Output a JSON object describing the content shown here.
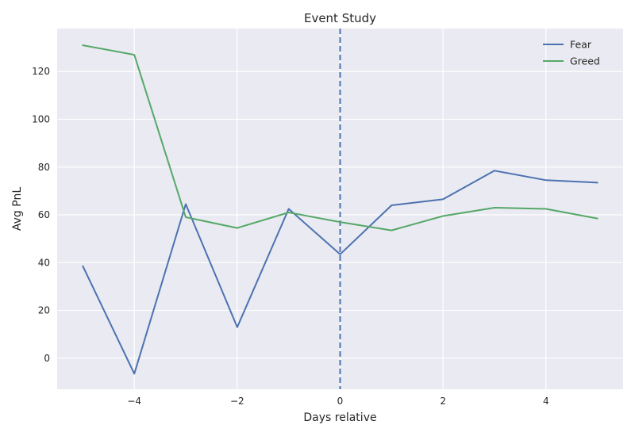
{
  "chart_data": {
    "type": "line",
    "title": "Event Study",
    "xlabel": "Days relative",
    "ylabel": "Avg PnL",
    "x": [
      -5,
      -4,
      -3,
      -2,
      -1,
      0,
      1,
      2,
      3,
      4,
      5
    ],
    "xlim": [
      -5.5,
      5.5
    ],
    "ylim": [
      -13,
      138
    ],
    "xticks": [
      -4,
      -2,
      0,
      2,
      4
    ],
    "xtick_labels": [
      "−4",
      "−2",
      "0",
      "2",
      "4"
    ],
    "yticks": [
      0,
      20,
      40,
      60,
      80,
      100,
      120
    ],
    "ytick_labels": [
      "0",
      "20",
      "40",
      "60",
      "80",
      "100",
      "120"
    ],
    "grid": true,
    "legend_position": "top-right",
    "event_line": {
      "x": 0,
      "style": "dashed",
      "color": "#4c72b0"
    },
    "series": [
      {
        "name": "Fear",
        "color": "#4c72b0",
        "values": [
          38.5,
          -6.5,
          64.5,
          13,
          62.5,
          43.5,
          64,
          66.5,
          78.5,
          74.5,
          73.5
        ]
      },
      {
        "name": "Greed",
        "color": "#55a868",
        "values": [
          131,
          127,
          59,
          54.5,
          61,
          57,
          53.5,
          59.5,
          63,
          62.5,
          58.5
        ]
      }
    ]
  }
}
